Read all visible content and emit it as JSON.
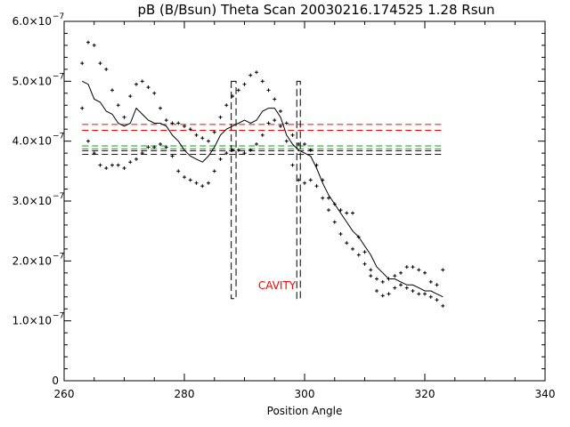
{
  "chart_data": {
    "type": "scatter",
    "title": "pB (B/Bsun) Theta Scan 20030216.174525 1.28 Rsun",
    "xlabel": "Position Angle",
    "ylabel": "",
    "xlim": [
      260,
      340
    ],
    "ylim": [
      0,
      6e-07
    ],
    "x_ticks": [
      "260",
      "280",
      "300",
      "320",
      "340"
    ],
    "y_ticks": [
      {
        "mant": "0",
        "exp": ""
      },
      {
        "mant": "1.0×10",
        "exp": "−7"
      },
      {
        "mant": "2.0×10",
        "exp": "−7"
      },
      {
        "mant": "3.0×10",
        "exp": "−7"
      },
      {
        "mant": "4.0×10",
        "exp": "−7"
      },
      {
        "mant": "5.0×10",
        "exp": "−7"
      },
      {
        "mant": "6.0×10",
        "exp": "−7"
      }
    ],
    "annotation": {
      "text": "CAVITY",
      "color": "#ff0000"
    },
    "reference_lines": [
      {
        "y": 4.28e-07,
        "color": "#ff0000",
        "style": "dashed"
      },
      {
        "y": 4.18e-07,
        "color": "#ff0000",
        "style": "dashed"
      },
      {
        "y": 3.92e-07,
        "color": "#00aa00",
        "style": "dashed"
      },
      {
        "y": 3.87e-07,
        "color": "#00aa00",
        "style": "dashed"
      },
      {
        "y": 3.84e-07,
        "color": "#0000ff",
        "style": "dashed"
      },
      {
        "y": 3.78e-07,
        "color": "#0000ff",
        "style": "dashed"
      }
    ],
    "cavity_boxes": [
      {
        "x0": 287.8,
        "x1": 288.6,
        "y0": 1.37e-07,
        "y1": 5e-07
      },
      {
        "x0": 298.7,
        "x1": 299.1,
        "y0": 1.37e-07,
        "y1": 5e-07
      }
    ],
    "series": [
      {
        "style": "solid-line",
        "points": [
          [
            263,
            5e-07
          ],
          [
            264,
            4.95e-07
          ],
          [
            265,
            4.7e-07
          ],
          [
            266,
            4.65e-07
          ],
          [
            267,
            4.5e-07
          ],
          [
            268,
            4.45e-07
          ],
          [
            269,
            4.3e-07
          ],
          [
            270,
            4.25e-07
          ],
          [
            271,
            4.3e-07
          ],
          [
            272,
            4.55e-07
          ],
          [
            273,
            4.45e-07
          ],
          [
            274,
            4.35e-07
          ],
          [
            275,
            4.3e-07
          ],
          [
            276,
            4.3e-07
          ],
          [
            277,
            4.25e-07
          ],
          [
            278,
            4.1e-07
          ],
          [
            279,
            4e-07
          ],
          [
            280,
            3.85e-07
          ],
          [
            281,
            3.75e-07
          ],
          [
            282,
            3.7e-07
          ],
          [
            283,
            3.65e-07
          ],
          [
            284,
            3.75e-07
          ],
          [
            285,
            3.9e-07
          ],
          [
            286,
            4.1e-07
          ],
          [
            287,
            4.2e-07
          ],
          [
            288,
            4.25e-07
          ],
          [
            289,
            4.3e-07
          ],
          [
            290,
            4.35e-07
          ],
          [
            291,
            4.3e-07
          ],
          [
            292,
            4.35e-07
          ],
          [
            293,
            4.5e-07
          ],
          [
            294,
            4.55e-07
          ],
          [
            295,
            4.55e-07
          ],
          [
            296,
            4.4e-07
          ],
          [
            297,
            4.1e-07
          ],
          [
            298,
            3.95e-07
          ],
          [
            299,
            3.85e-07
          ],
          [
            300,
            3.8e-07
          ],
          [
            301,
            3.75e-07
          ],
          [
            302,
            3.55e-07
          ],
          [
            303,
            3.3e-07
          ],
          [
            304,
            3.1e-07
          ],
          [
            305,
            2.95e-07
          ],
          [
            306,
            2.8e-07
          ],
          [
            307,
            2.65e-07
          ],
          [
            308,
            2.5e-07
          ],
          [
            309,
            2.4e-07
          ],
          [
            310,
            2.25e-07
          ],
          [
            311,
            2.1e-07
          ],
          [
            312,
            1.9e-07
          ],
          [
            313,
            1.8e-07
          ],
          [
            314,
            1.7e-07
          ],
          [
            315,
            1.7e-07
          ],
          [
            316,
            1.65e-07
          ],
          [
            317,
            1.6e-07
          ],
          [
            318,
            1.6e-07
          ],
          [
            319,
            1.55e-07
          ],
          [
            320,
            1.5e-07
          ],
          [
            321,
            1.5e-07
          ],
          [
            322,
            1.45e-07
          ],
          [
            323,
            1.4e-07
          ]
        ]
      },
      {
        "style": "plus-markers",
        "points": [
          [
            263,
            5.3e-07
          ],
          [
            264,
            5.65e-07
          ],
          [
            265,
            5.6e-07
          ],
          [
            266,
            5.3e-07
          ],
          [
            267,
            5.2e-07
          ],
          [
            268,
            4.85e-07
          ],
          [
            269,
            4.6e-07
          ],
          [
            270,
            4.4e-07
          ],
          [
            271,
            4.75e-07
          ],
          [
            272,
            4.95e-07
          ],
          [
            273,
            5e-07
          ],
          [
            274,
            4.9e-07
          ],
          [
            275,
            4.8e-07
          ],
          [
            276,
            4.55e-07
          ],
          [
            277,
            4.35e-07
          ],
          [
            278,
            4.3e-07
          ],
          [
            279,
            4.3e-07
          ],
          [
            280,
            4.25e-07
          ],
          [
            281,
            4.2e-07
          ],
          [
            282,
            4.1e-07
          ],
          [
            283,
            4.05e-07
          ],
          [
            284,
            4e-07
          ],
          [
            285,
            4.15e-07
          ],
          [
            286,
            4.4e-07
          ],
          [
            287,
            4.6e-07
          ],
          [
            288,
            4.75e-07
          ],
          [
            289,
            4.85e-07
          ],
          [
            290,
            4.95e-07
          ],
          [
            291,
            5.1e-07
          ],
          [
            292,
            5.15e-07
          ],
          [
            293,
            5e-07
          ],
          [
            294,
            4.85e-07
          ],
          [
            295,
            4.7e-07
          ],
          [
            296,
            4.5e-07
          ],
          [
            297,
            4.3e-07
          ],
          [
            298,
            4.1e-07
          ],
          [
            299,
            3.95e-07
          ],
          [
            300,
            3.95e-07
          ],
          [
            301,
            3.85e-07
          ],
          [
            302,
            3.6e-07
          ],
          [
            303,
            3.35e-07
          ],
          [
            304,
            3.05e-07
          ],
          [
            305,
            2.95e-07
          ],
          [
            306,
            2.85e-07
          ],
          [
            307,
            2.8e-07
          ],
          [
            308,
            2.8e-07
          ],
          [
            309,
            2.4e-07
          ],
          [
            310,
            2.15e-07
          ],
          [
            311,
            1.85e-07
          ],
          [
            312,
            1.7e-07
          ],
          [
            313,
            1.65e-07
          ],
          [
            314,
            1.7e-07
          ],
          [
            315,
            1.75e-07
          ],
          [
            316,
            1.8e-07
          ],
          [
            317,
            1.9e-07
          ],
          [
            318,
            1.9e-07
          ],
          [
            319,
            1.85e-07
          ],
          [
            320,
            1.8e-07
          ],
          [
            321,
            1.65e-07
          ],
          [
            322,
            1.6e-07
          ],
          [
            323,
            1.85e-07
          ]
        ]
      },
      {
        "style": "plus-markers",
        "points": [
          [
            263,
            4.55e-07
          ],
          [
            264,
            4e-07
          ],
          [
            265,
            3.8e-07
          ],
          [
            266,
            3.6e-07
          ],
          [
            267,
            3.55e-07
          ],
          [
            268,
            3.6e-07
          ],
          [
            269,
            3.6e-07
          ],
          [
            270,
            3.55e-07
          ],
          [
            271,
            3.65e-07
          ],
          [
            272,
            3.7e-07
          ],
          [
            273,
            3.8e-07
          ],
          [
            274,
            3.9e-07
          ],
          [
            275,
            3.9e-07
          ],
          [
            276,
            3.95e-07
          ],
          [
            277,
            3.9e-07
          ],
          [
            278,
            3.75e-07
          ],
          [
            279,
            3.5e-07
          ],
          [
            280,
            3.4e-07
          ],
          [
            281,
            3.35e-07
          ],
          [
            282,
            3.3e-07
          ],
          [
            283,
            3.25e-07
          ],
          [
            284,
            3.3e-07
          ],
          [
            285,
            3.5e-07
          ],
          [
            286,
            3.7e-07
          ],
          [
            287,
            3.8e-07
          ],
          [
            288,
            3.85e-07
          ],
          [
            289,
            3.85e-07
          ],
          [
            290,
            3.8e-07
          ],
          [
            291,
            3.85e-07
          ],
          [
            292,
            3.95e-07
          ],
          [
            293,
            4.1e-07
          ],
          [
            294,
            4.3e-07
          ],
          [
            295,
            4.35e-07
          ],
          [
            296,
            4.25e-07
          ],
          [
            297,
            4e-07
          ],
          [
            298,
            3.6e-07
          ],
          [
            299,
            3.35e-07
          ],
          [
            300,
            3.3e-07
          ],
          [
            301,
            3.35e-07
          ],
          [
            302,
            3.25e-07
          ],
          [
            303,
            3.05e-07
          ],
          [
            304,
            2.85e-07
          ],
          [
            305,
            2.65e-07
          ],
          [
            306,
            2.45e-07
          ],
          [
            307,
            2.3e-07
          ],
          [
            308,
            2.2e-07
          ],
          [
            309,
            2.1e-07
          ],
          [
            310,
            1.95e-07
          ],
          [
            311,
            1.75e-07
          ],
          [
            312,
            1.5e-07
          ],
          [
            313,
            1.42e-07
          ],
          [
            314,
            1.45e-07
          ],
          [
            315,
            1.55e-07
          ],
          [
            316,
            1.6e-07
          ],
          [
            317,
            1.55e-07
          ],
          [
            318,
            1.5e-07
          ],
          [
            319,
            1.45e-07
          ],
          [
            320,
            1.45e-07
          ],
          [
            321,
            1.4e-07
          ],
          [
            322,
            1.35e-07
          ],
          [
            323,
            1.25e-07
          ]
        ]
      }
    ]
  }
}
